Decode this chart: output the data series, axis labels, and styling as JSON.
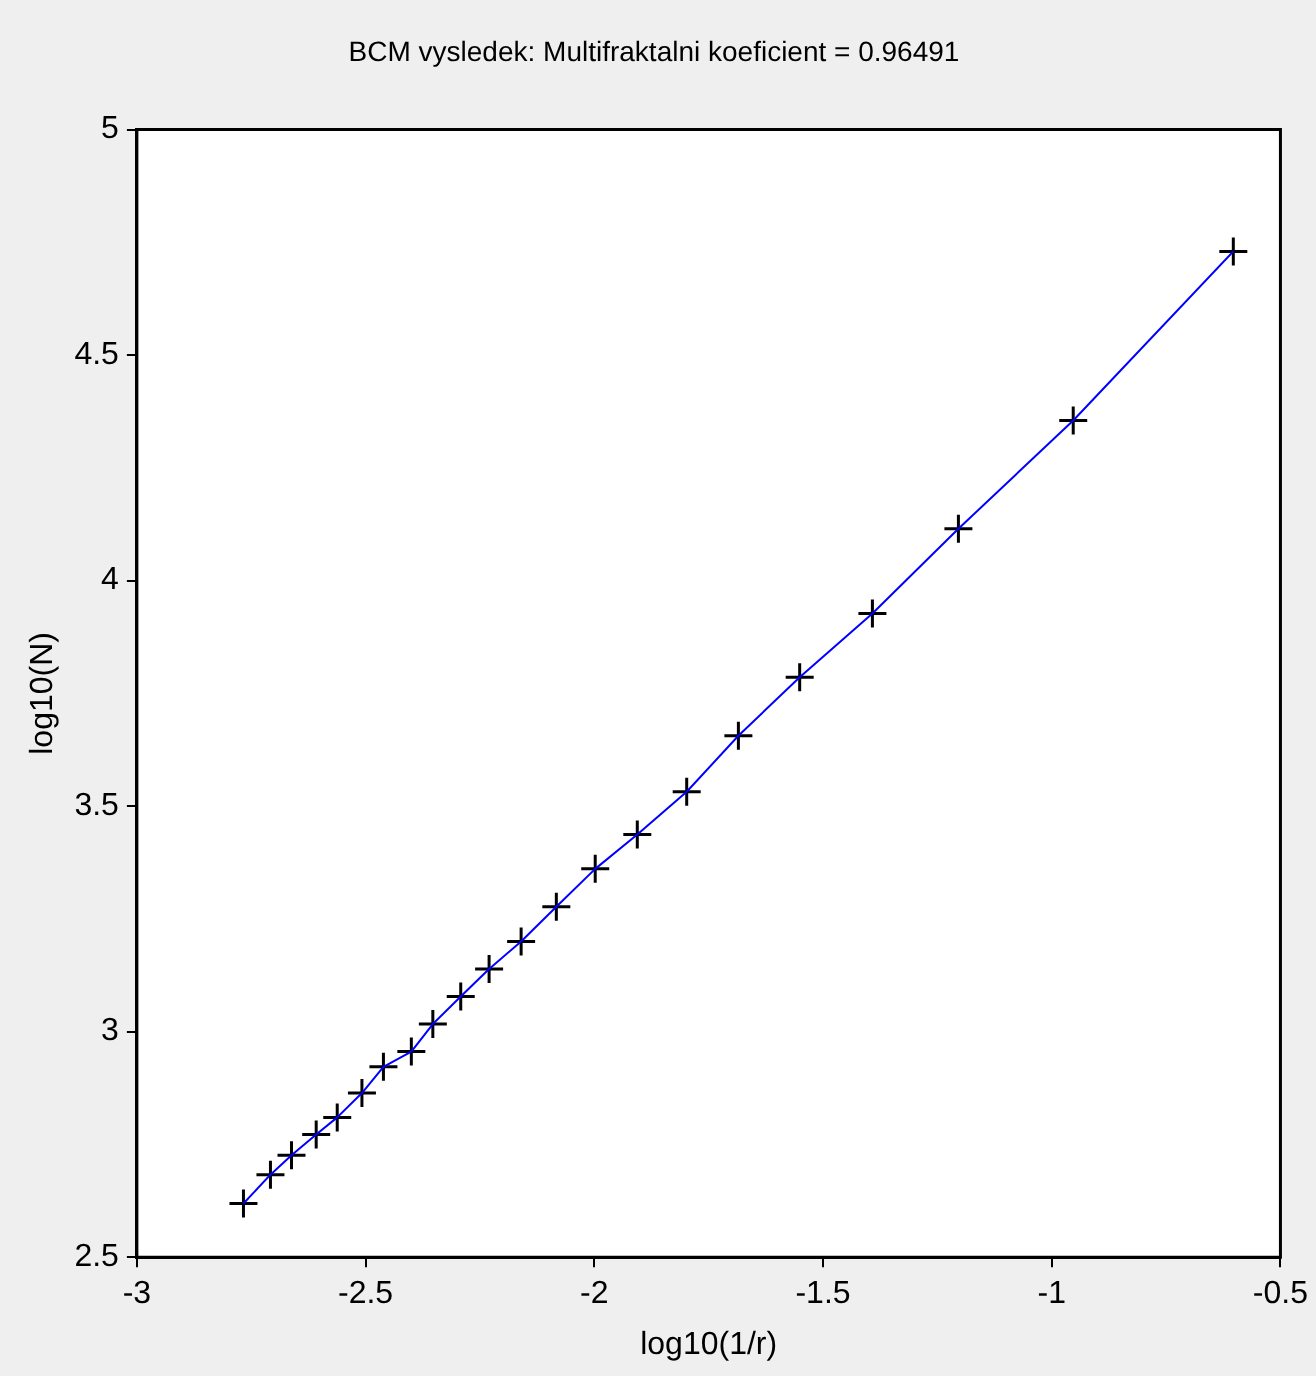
{
  "chart_data": {
    "type": "scatter",
    "title": "BCM vysledek: Multifraktalni koeficient = 0.96491",
    "xlabel": "log10(1/r)",
    "ylabel": "log10(N)",
    "xlim": [
      -3,
      -0.5
    ],
    "xticks": [
      -3,
      -2.5,
      -2,
      -1.5,
      -1,
      -0.5
    ],
    "ylim": [
      2.5,
      5
    ],
    "yticks": [
      2.5,
      3,
      3.5,
      4,
      4.5,
      5
    ],
    "grid": false,
    "legend": false,
    "series": [
      {
        "type": "line",
        "color": "#0000ff",
        "marker": "none",
        "x": [
          -2.767,
          -2.708,
          -2.662,
          -2.608,
          -2.562,
          -2.508,
          -2.461,
          -2.4,
          -2.353,
          -2.292,
          -2.23,
          -2.16,
          -2.083,
          -1.998,
          -1.906,
          -1.798,
          -1.685,
          -1.551,
          -1.392,
          -1.204,
          -0.953,
          -0.603
        ],
        "values": [
          2.619,
          2.683,
          2.726,
          2.772,
          2.81,
          2.864,
          2.922,
          2.956,
          3.017,
          3.078,
          3.139,
          3.2,
          3.277,
          3.361,
          3.437,
          3.532,
          3.656,
          3.786,
          3.927,
          4.115,
          4.355,
          4.73
        ]
      },
      {
        "color": "#000000",
        "marker": "cross",
        "x": [
          -2.767,
          -2.708,
          -2.662,
          -2.608,
          -2.562,
          -2.508,
          -2.461,
          -2.4,
          -2.353,
          -2.292,
          -2.23,
          -2.16,
          -2.083,
          -1.998,
          -1.906,
          -1.798,
          -1.685,
          -1.551,
          -1.392,
          -1.204,
          -0.953,
          -0.603
        ],
        "values": [
          2.619,
          2.683,
          2.726,
          2.772,
          2.81,
          2.864,
          2.922,
          2.956,
          3.017,
          3.078,
          3.139,
          3.2,
          3.277,
          3.361,
          3.437,
          3.532,
          3.656,
          3.786,
          3.927,
          4.115,
          4.355,
          4.73
        ]
      }
    ]
  }
}
